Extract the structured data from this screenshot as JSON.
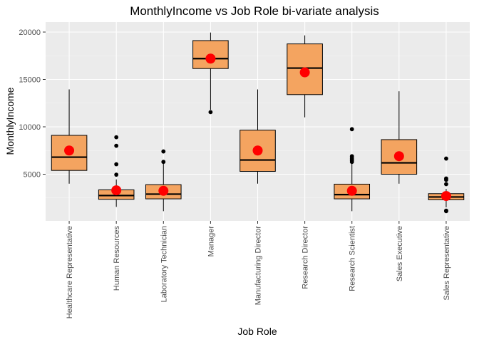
{
  "chart_data": {
    "type": "box",
    "title": "MonthlyIncome vs Job Role bi-variate analysis",
    "xlabel": "Job Role",
    "ylabel": "MonthlyIncome",
    "ylim": [
      0,
      20500
    ],
    "yticks": [
      5000,
      10000,
      15000,
      20000
    ],
    "grid": true,
    "colors": {
      "panel": "#ebebeb",
      "grid_major": "#ffffff",
      "box_fill": "#f4a460",
      "box_stroke": "#000000",
      "mean_point": "#ff0000",
      "outlier": "#000000"
    },
    "categories": [
      "Healthcare Representative",
      "Human Resources",
      "Laboratory Technician",
      "Manager",
      "Manufacturing Director",
      "Research Director",
      "Research Scientist",
      "Sales Executive",
      "Sales Representative"
    ],
    "boxes": [
      {
        "min": 4000,
        "q1": 5400,
        "median": 6800,
        "q3": 9100,
        "max": 13950,
        "mean": 7500,
        "outliers": []
      },
      {
        "min": 1550,
        "q1": 2350,
        "median": 2750,
        "q3": 3350,
        "max": 4450,
        "mean": 3300,
        "outliers": [
          4950,
          6050,
          8000,
          8900
        ]
      },
      {
        "min": 1100,
        "q1": 2400,
        "median": 2900,
        "q3": 3900,
        "max": 6300,
        "mean": 3250,
        "outliers": [
          6300,
          7400
        ]
      },
      {
        "min": 11800,
        "q1": 16150,
        "median": 17200,
        "q3": 19100,
        "max": 19950,
        "mean": 17200,
        "outliers": [
          11550
        ]
      },
      {
        "min": 4000,
        "q1": 5300,
        "median": 6500,
        "q3": 9650,
        "max": 13950,
        "mean": 7500,
        "outliers": []
      },
      {
        "min": 11000,
        "q1": 13400,
        "median": 16200,
        "q3": 18750,
        "max": 19650,
        "mean": 15750,
        "outliers": []
      },
      {
        "min": 1100,
        "q1": 2400,
        "median": 2850,
        "q3": 3950,
        "max": 6100,
        "mean": 3250,
        "outliers": [
          6300,
          6450,
          6600,
          6700,
          6900,
          9750
        ]
      },
      {
        "min": 4000,
        "q1": 5000,
        "median": 6200,
        "q3": 8650,
        "max": 13750,
        "mean": 6900,
        "outliers": []
      },
      {
        "min": 1500,
        "q1": 2300,
        "median": 2600,
        "q3": 2950,
        "max": 3450,
        "mean": 2700,
        "outliers": [
          1100,
          1150,
          3950,
          4400,
          4550,
          6650
        ]
      }
    ]
  }
}
